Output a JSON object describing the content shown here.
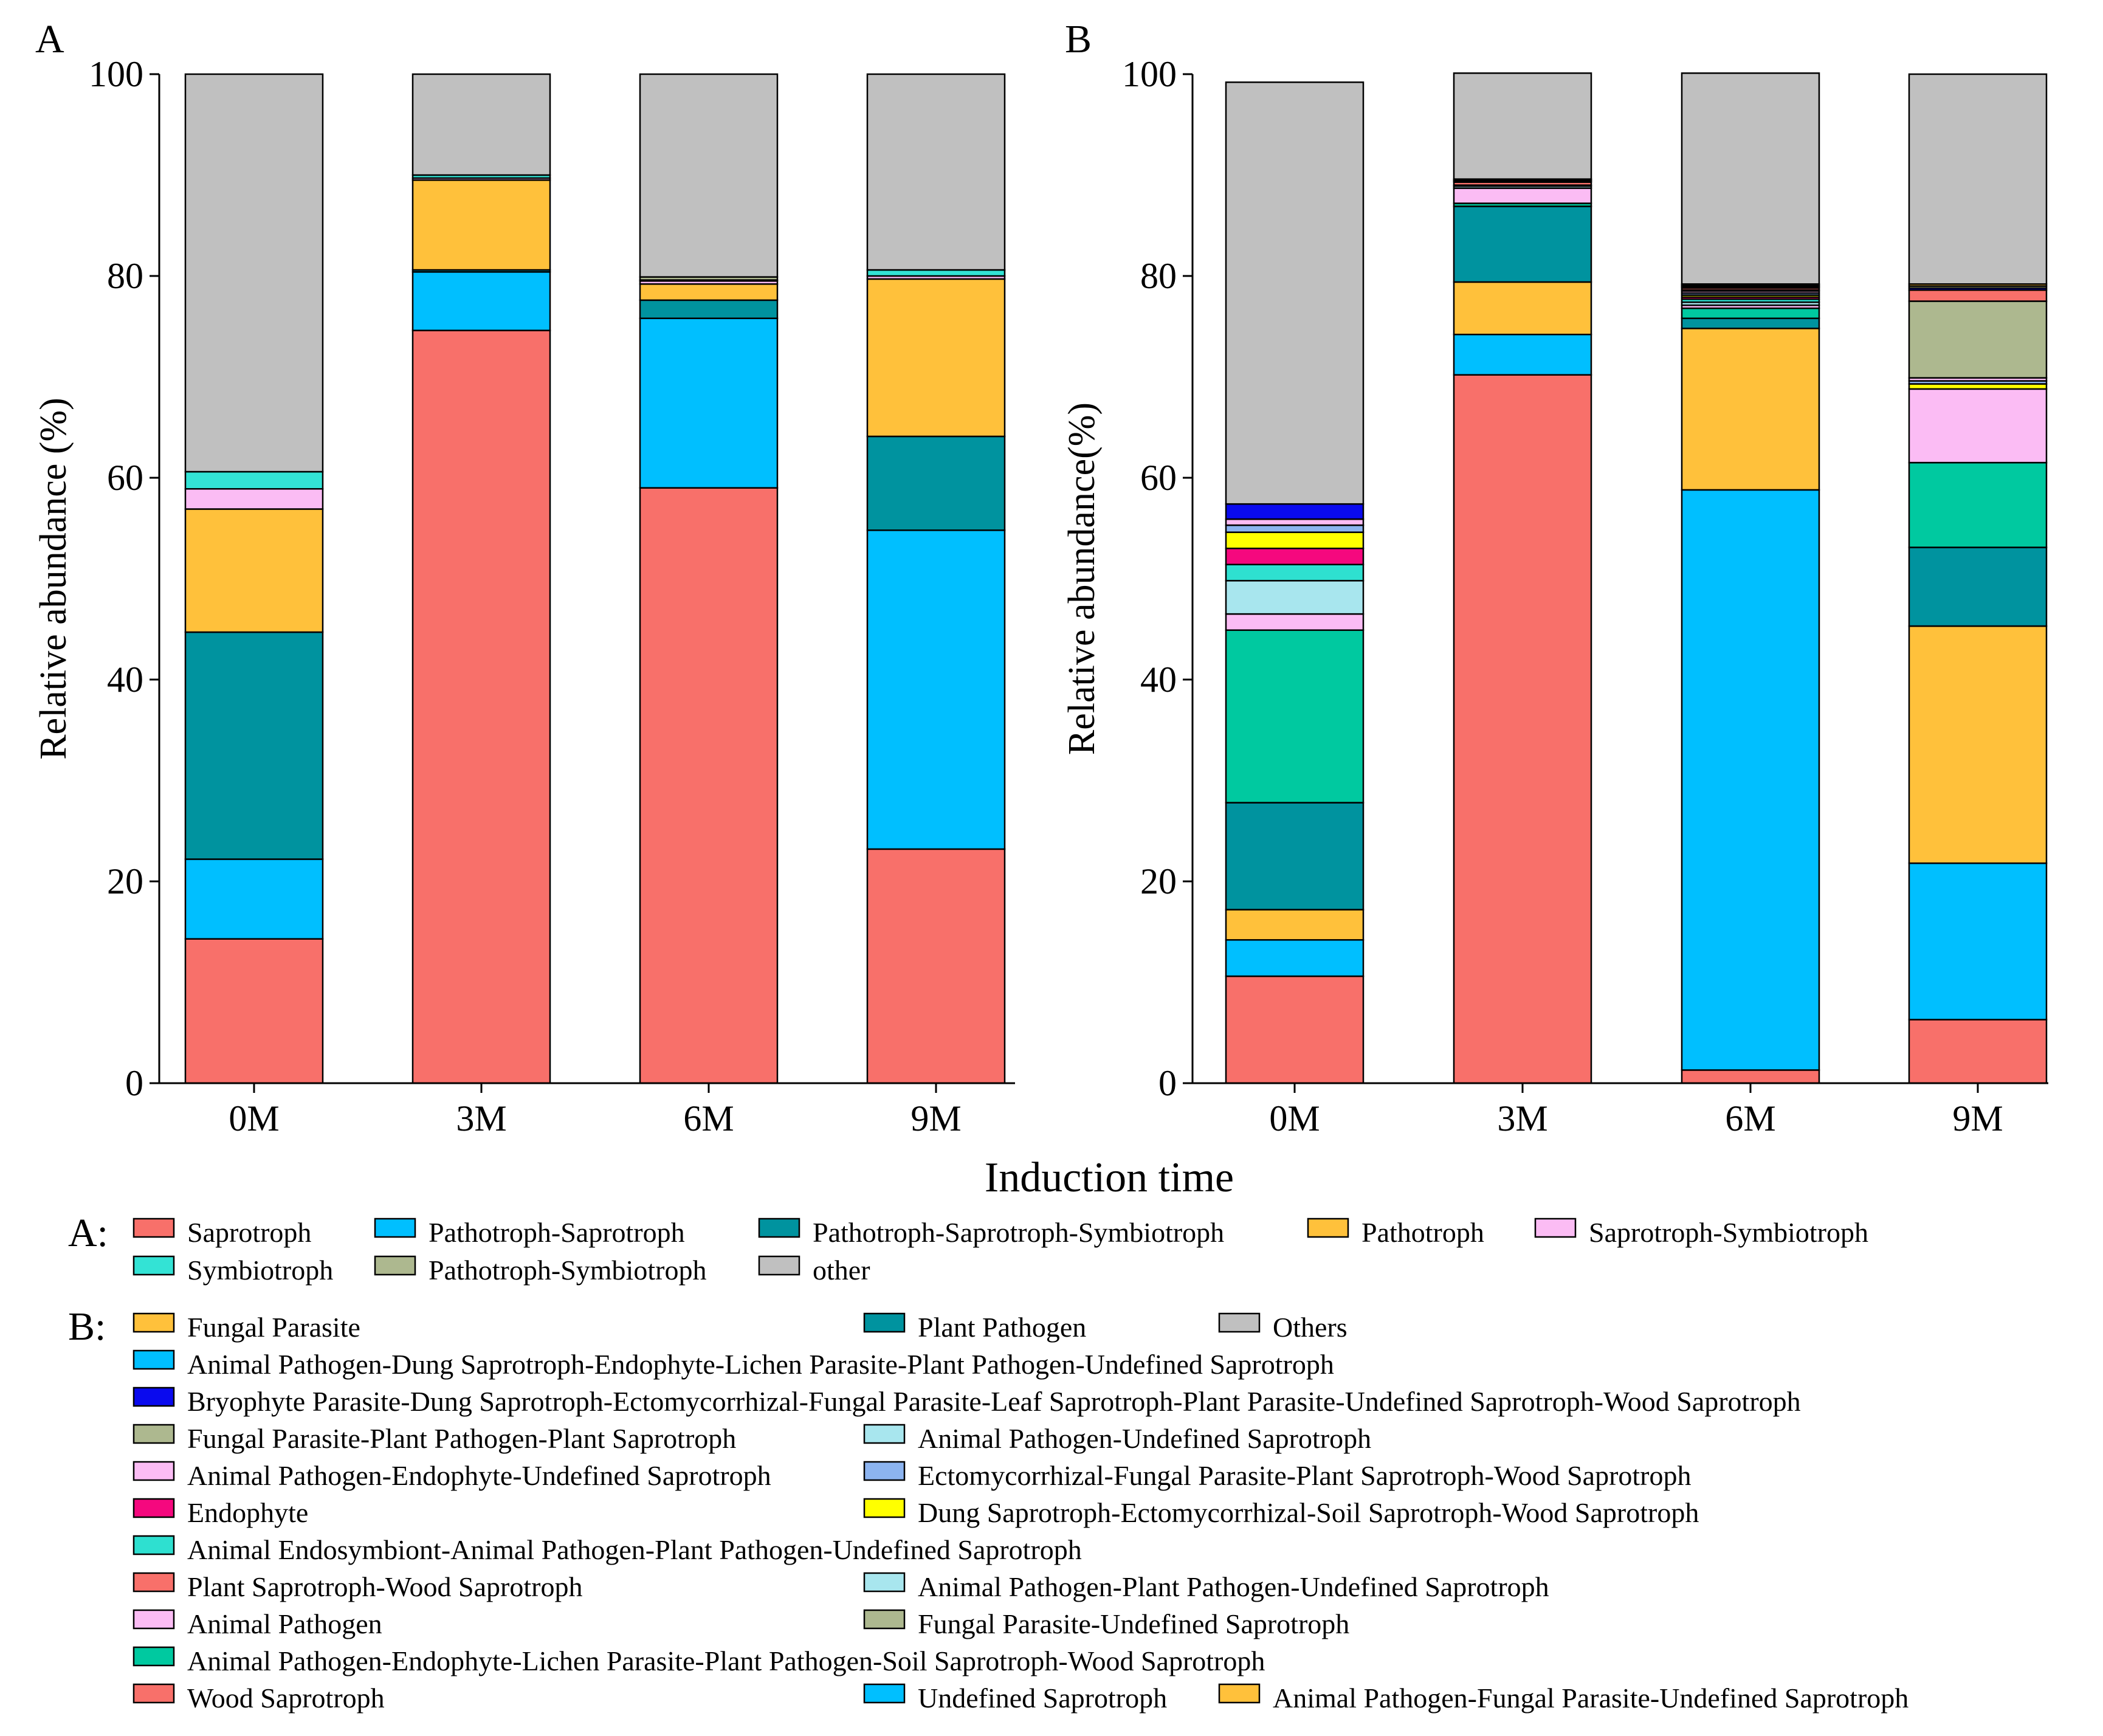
{
  "figure": {
    "xlabel": "Induction time"
  },
  "chart_data": [
    {
      "type": "bar",
      "stacked": true,
      "panel": "A",
      "legend_prefix": "A:",
      "title": "",
      "ylabel": "Relative abundance (%)",
      "xlabel": "Induction time",
      "ylim": [
        0,
        100
      ],
      "yticks": [
        0,
        20,
        40,
        60,
        80,
        100
      ],
      "categories": [
        "0M",
        "3M",
        "6M",
        "9M"
      ],
      "series": [
        {
          "name": "Saprotroph",
          "color": "#F8706A",
          "values": [
            14.3,
            74.6,
            59.0,
            23.2
          ]
        },
        {
          "name": "Pathotroph-Saprotroph",
          "color": "#00BFFF",
          "values": [
            7.9,
            5.8,
            16.8,
            31.6
          ]
        },
        {
          "name": "Pathotroph-Saprotroph-Symbiotroph",
          "color": "#00939F",
          "values": [
            22.5,
            0.2,
            1.8,
            9.3
          ]
        },
        {
          "name": "Pathotroph",
          "color": "#FFC13B",
          "values": [
            12.2,
            8.9,
            1.6,
            15.6
          ]
        },
        {
          "name": "Saprotroph-Symbiotroph",
          "color": "#FBBCF4",
          "values": [
            2.0,
            0.2,
            0.3,
            0.3
          ]
        },
        {
          "name": "Symbiotroph",
          "color": "#33E3D5",
          "values": [
            1.7,
            0.3,
            0.1,
            0.6
          ]
        },
        {
          "name": "Pathotroph-Symbiotroph",
          "color": "#ADB88F",
          "values": [
            0.0,
            0.0,
            0.3,
            0.0
          ]
        },
        {
          "name": "other",
          "color": "#C0C0C0",
          "values": [
            39.4,
            10.0,
            20.1,
            19.4
          ]
        }
      ],
      "legend_rows": [
        [
          "Saprotroph",
          "Pathotroph-Saprotroph",
          "Pathotroph-Saprotroph-Symbiotroph",
          "Pathotroph",
          "Saprotroph-Symbiotroph"
        ],
        [
          "Symbiotroph",
          "Pathotroph-Symbiotroph",
          "other"
        ]
      ]
    },
    {
      "type": "bar",
      "stacked": true,
      "panel": "B",
      "legend_prefix": "B:",
      "title": "",
      "ylabel": "Relative abundance(%)",
      "xlabel": "Induction time",
      "ylim": [
        0,
        100
      ],
      "yticks": [
        0,
        20,
        40,
        60,
        80,
        100
      ],
      "categories": [
        "0M",
        "3M",
        "6M",
        "9M"
      ],
      "series": [
        {
          "name": "Wood Saprotroph",
          "color": "#F8706A",
          "values": [
            10.6,
            70.2,
            1.3,
            6.3
          ]
        },
        {
          "name": "Undefined Saprotroph",
          "color": "#00BFFF",
          "values": [
            3.6,
            4.0,
            57.5,
            15.5
          ]
        },
        {
          "name": "Animal Pathogen-Fungal Parasite-Undefined Saprotroph",
          "color": "#FFC13B",
          "values": [
            3.0,
            5.2,
            16.0,
            23.5
          ]
        },
        {
          "name": "Plant Pathogen",
          "color": "#00939F",
          "values": [
            10.6,
            7.5,
            1.0,
            7.8
          ]
        },
        {
          "name": "Animal Pathogen-Endophyte-Lichen Parasite-Plant Pathogen-Soil Saprotroph-Wood Saprotroph",
          "color": "#00C9A0",
          "values": [
            17.1,
            0.3,
            1.0,
            8.4
          ]
        },
        {
          "name": "Animal Pathogen",
          "color": "#FBBCF4",
          "values": [
            1.6,
            1.5,
            0.3,
            7.3
          ]
        },
        {
          "name": "Animal Pathogen-Undefined Saprotroph",
          "color": "#A8E6EE",
          "values": [
            3.3,
            0.2,
            0.3,
            0.0
          ]
        },
        {
          "name": "Animal Endosymbiont-Animal Pathogen-Plant Pathogen-Undefined Saprotroph",
          "color": "#2EE0D0",
          "values": [
            1.6,
            0.1,
            0.3,
            0.0
          ]
        },
        {
          "name": "Endophyte",
          "color": "#F5087E",
          "values": [
            1.6,
            0.0,
            0.2,
            0.0
          ]
        },
        {
          "name": "Dung Saprotroph-Ectomycorrhizal-Soil Saprotroph-Wood Saprotroph",
          "color": "#FFFF00",
          "values": [
            1.6,
            0.0,
            0.2,
            0.5
          ]
        },
        {
          "name": "Ectomycorrhizal-Fungal Parasite-Plant Saprotroph-Wood Saprotroph",
          "color": "#8CB4F0",
          "values": [
            0.7,
            0.0,
            0.2,
            0.3
          ]
        },
        {
          "name": "Animal Pathogen-Endophyte-Undefined Saprotroph",
          "color": "#FBBCF4",
          "values": [
            0.6,
            0.0,
            0.2,
            0.3
          ]
        },
        {
          "name": "Fungal Parasite-Plant Pathogen-Plant Saprotroph",
          "color": "#ADB88F",
          "values": [
            0.0,
            0.0,
            0.1,
            7.6
          ]
        },
        {
          "name": "Plant Saprotroph-Wood Saprotroph",
          "color": "#F8706A",
          "values": [
            0.0,
            0.3,
            0.2,
            1.1
          ]
        },
        {
          "name": "Bryophyte Parasite-Dung Saprotroph-Ectomycorrhizal-Fungal Parasite-Leaf Saprotroph-Plant Parasite-Undefined Saprotroph-Wood Saprotroph",
          "color": "#0A0AEE",
          "values": [
            1.5,
            0.0,
            0.1,
            0.2
          ]
        },
        {
          "name": "Animal Pathogen-Plant Pathogen-Undefined Saprotroph",
          "color": "#A8E6EE",
          "values": [
            0.0,
            0.1,
            0.1,
            0.0
          ]
        },
        {
          "name": "Fungal Parasite-Undefined Saprotroph",
          "color": "#ADB88F",
          "values": [
            0.0,
            0.0,
            0.1,
            0.2
          ]
        },
        {
          "name": "Fungal Parasite",
          "color": "#FFC13B",
          "values": [
            0.0,
            0.1,
            0.1,
            0.2
          ]
        },
        {
          "name": "Animal Pathogen-Dung Saprotroph-Endophyte-Lichen Parasite-Plant Pathogen-Undefined Saprotroph",
          "color": "#00BFFF",
          "values": [
            0.0,
            0.1,
            0.0,
            0.0
          ]
        },
        {
          "name": "Others",
          "color": "#C0C0C0",
          "values": [
            41.8,
            10.5,
            20.9,
            20.8
          ]
        }
      ],
      "legend_rows": [
        [
          "Fungal Parasite",
          "Plant Pathogen",
          "Others"
        ],
        [
          "Animal Pathogen-Dung Saprotroph-Endophyte-Lichen Parasite-Plant Pathogen-Undefined Saprotroph"
        ],
        [
          "Bryophyte Parasite-Dung Saprotroph-Ectomycorrhizal-Fungal Parasite-Leaf Saprotroph-Plant Parasite-Undefined Saprotroph-Wood Saprotroph"
        ],
        [
          "Fungal Parasite-Plant Pathogen-Plant Saprotroph",
          "Animal Pathogen-Undefined Saprotroph"
        ],
        [
          "Animal Pathogen-Endophyte-Undefined Saprotroph",
          "Ectomycorrhizal-Fungal Parasite-Plant Saprotroph-Wood Saprotroph"
        ],
        [
          "Endophyte",
          "Dung Saprotroph-Ectomycorrhizal-Soil Saprotroph-Wood Saprotroph"
        ],
        [
          "Animal Endosymbiont-Animal Pathogen-Plant Pathogen-Undefined Saprotroph"
        ],
        [
          "Plant Saprotroph-Wood Saprotroph",
          "Animal Pathogen-Plant Pathogen-Undefined Saprotroph"
        ],
        [
          "Animal Pathogen",
          "Fungal Parasite-Undefined Saprotroph"
        ],
        [
          "Animal Pathogen-Endophyte-Lichen Parasite-Plant Pathogen-Soil Saprotroph-Wood Saprotroph"
        ],
        [
          "Wood Saprotroph",
          "Undefined Saprotroph",
          "Animal Pathogen-Fungal Parasite-Undefined Saprotroph"
        ]
      ]
    }
  ]
}
